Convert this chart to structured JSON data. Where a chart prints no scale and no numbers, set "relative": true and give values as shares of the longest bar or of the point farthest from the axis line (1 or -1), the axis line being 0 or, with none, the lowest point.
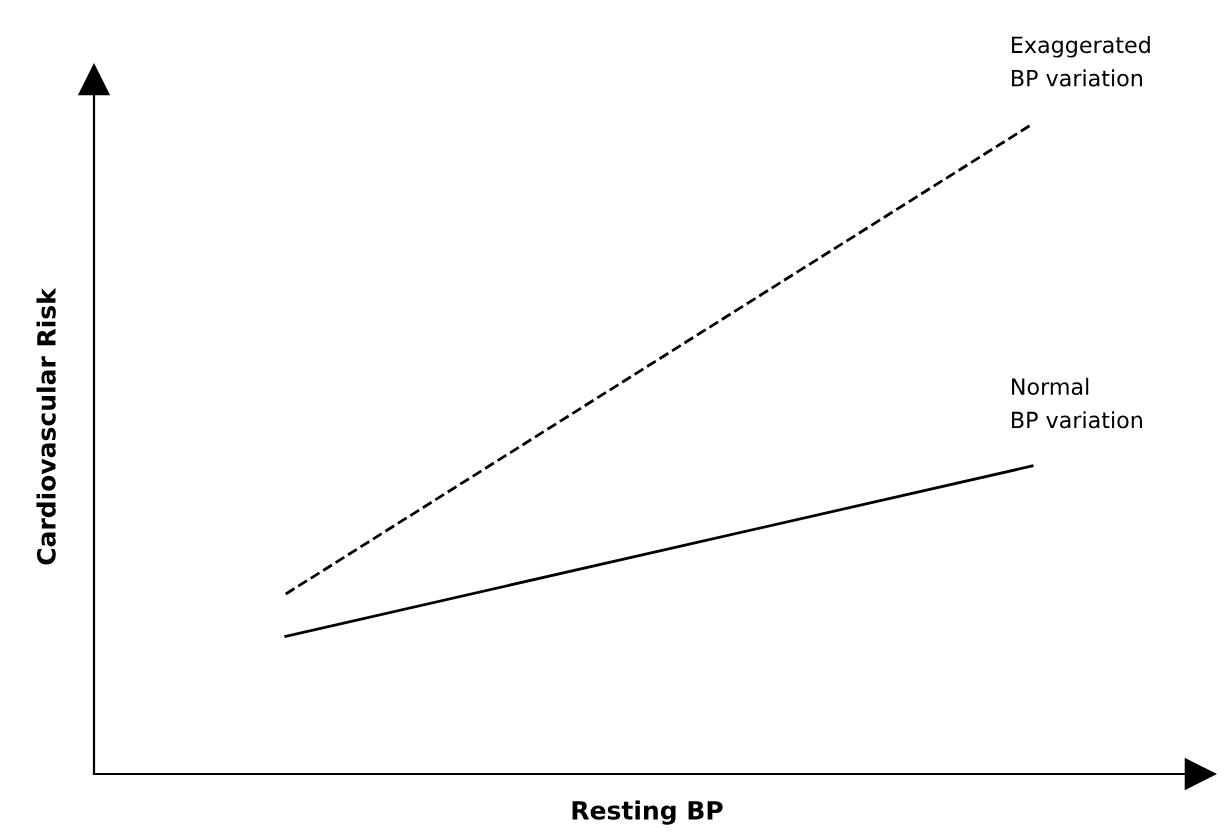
{
  "chart_data": {
    "type": "line",
    "relative": true,
    "xlabel": "Resting BP",
    "ylabel": "Cardiovascular Risk",
    "categories": [
      null,
      null
    ],
    "series": [
      {
        "values": [
          0.277,
          1
        ],
        "color": "#000000",
        "line_style": "dashed"
      },
      {
        "values": [
          0.212,
          0.474
        ],
        "color": "#000000",
        "line_style": "solid"
      }
    ],
    "annotations": [
      "Exaggerated\nBP variation",
      "Normal\nBP variation"
    ],
    "marker": "none"
  }
}
